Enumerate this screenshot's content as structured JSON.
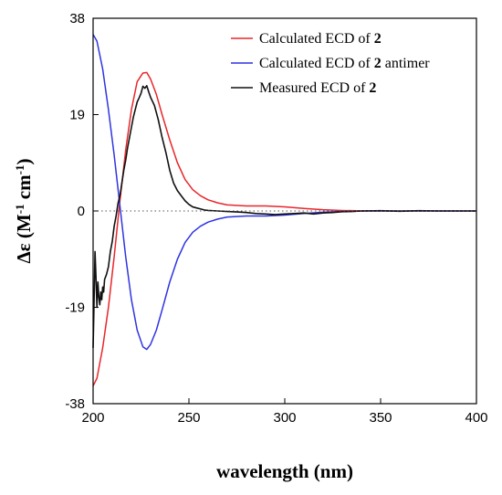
{
  "chart_data": {
    "type": "line",
    "xlabel": "wavelength (nm)",
    "ylabel": {
      "prefix": "Δε (M",
      "sup1": "-1",
      "mid": " cm",
      "sup2": "-1",
      "suffix": ")"
    },
    "xlim": [
      200,
      400
    ],
    "ylim": [
      -38,
      38
    ],
    "x_ticks": [
      200,
      250,
      300,
      350,
      400
    ],
    "x_tick_labels": [
      "200",
      "250",
      "300",
      "350",
      "400"
    ],
    "y_ticks": [
      38,
      19,
      0,
      -19,
      -38
    ],
    "y_tick_labels": [
      "38",
      "19",
      "0",
      "-19",
      "-38"
    ],
    "zero_line": "dotted",
    "grid": false,
    "legend_position": "top-right",
    "series": [
      {
        "name": "Calculated ECD of 2",
        "legend": {
          "prefix": "Calculated ECD of ",
          "bold": "2",
          "suffix": ""
        },
        "color": "#e8262a",
        "points": [
          [
            200,
            -34.5
          ],
          [
            202,
            -33
          ],
          [
            205,
            -27
          ],
          [
            208,
            -19
          ],
          [
            211,
            -9
          ],
          [
            214,
            2
          ],
          [
            217,
            12
          ],
          [
            220,
            20
          ],
          [
            223,
            25.5
          ],
          [
            226,
            27.2
          ],
          [
            228,
            27.3
          ],
          [
            230,
            26
          ],
          [
            233,
            23
          ],
          [
            236,
            19
          ],
          [
            240,
            14
          ],
          [
            244,
            9.5
          ],
          [
            248,
            6.2
          ],
          [
            252,
            4.2
          ],
          [
            256,
            3
          ],
          [
            260,
            2.2
          ],
          [
            265,
            1.6
          ],
          [
            270,
            1.2
          ],
          [
            280,
            1
          ],
          [
            290,
            1
          ],
          [
            300,
            0.8
          ],
          [
            310,
            0.5
          ],
          [
            320,
            0.25
          ],
          [
            330,
            0.1
          ],
          [
            340,
            0.03
          ],
          [
            350,
            0
          ],
          [
            400,
            0
          ]
        ]
      },
      {
        "name": "Calculated ECD of 2 antimer",
        "legend": {
          "prefix": "Calculated ECD of ",
          "bold": "2",
          "suffix": " antimer"
        },
        "color": "#2e34e0",
        "points": [
          [
            200,
            34.8
          ],
          [
            202,
            33.5
          ],
          [
            205,
            28
          ],
          [
            208,
            20
          ],
          [
            211,
            11
          ],
          [
            214,
            1
          ],
          [
            217,
            -9
          ],
          [
            220,
            -17.5
          ],
          [
            223,
            -23.5
          ],
          [
            226,
            -26.8
          ],
          [
            228,
            -27.3
          ],
          [
            230,
            -26.3
          ],
          [
            233,
            -23.5
          ],
          [
            236,
            -19.5
          ],
          [
            240,
            -14
          ],
          [
            244,
            -9.5
          ],
          [
            248,
            -6.2
          ],
          [
            252,
            -4.2
          ],
          [
            256,
            -3
          ],
          [
            260,
            -2.2
          ],
          [
            265,
            -1.6
          ],
          [
            270,
            -1.2
          ],
          [
            280,
            -1
          ],
          [
            290,
            -1
          ],
          [
            300,
            -0.8
          ],
          [
            310,
            -0.5
          ],
          [
            320,
            -0.25
          ],
          [
            330,
            -0.1
          ],
          [
            340,
            -0.03
          ],
          [
            350,
            0
          ],
          [
            400,
            0
          ]
        ]
      },
      {
        "name": "Measured ECD of 2",
        "legend": {
          "prefix": "Measured ECD of ",
          "bold": "2",
          "suffix": ""
        },
        "color": "#111111",
        "points": [
          [
            200,
            -27
          ],
          [
            200.5,
            -18
          ],
          [
            201,
            -8
          ],
          [
            201.5,
            -13
          ],
          [
            202,
            -19
          ],
          [
            202.5,
            -14
          ],
          [
            203,
            -17
          ],
          [
            203.5,
            -18.5
          ],
          [
            204,
            -16
          ],
          [
            204.5,
            -17.5
          ],
          [
            205,
            -15
          ],
          [
            205.5,
            -16
          ],
          [
            206,
            -13.5
          ],
          [
            207,
            -12.5
          ],
          [
            208,
            -11
          ],
          [
            209,
            -8
          ],
          [
            210,
            -6
          ],
          [
            211,
            -3
          ],
          [
            212,
            -1
          ],
          [
            213,
            1.5
          ],
          [
            214,
            3
          ],
          [
            215,
            5.5
          ],
          [
            216,
            8
          ],
          [
            217,
            10
          ],
          [
            218,
            12.5
          ],
          [
            219,
            14.5
          ],
          [
            220,
            16.5
          ],
          [
            221,
            18.5
          ],
          [
            222,
            20
          ],
          [
            223,
            21.5
          ],
          [
            224,
            22.3
          ],
          [
            225,
            23.2
          ],
          [
            226,
            24.6
          ],
          [
            227,
            24.2
          ],
          [
            228,
            24.7
          ],
          [
            229,
            23.5
          ],
          [
            230,
            22.4
          ],
          [
            232,
            20.8
          ],
          [
            234,
            18
          ],
          [
            236,
            14.5
          ],
          [
            238,
            11.5
          ],
          [
            240,
            8
          ],
          [
            242,
            5.5
          ],
          [
            244,
            4
          ],
          [
            246,
            3
          ],
          [
            248,
            2
          ],
          [
            250,
            1.3
          ],
          [
            252,
            0.8
          ],
          [
            254,
            0.6
          ],
          [
            256,
            0.4
          ],
          [
            258,
            0.2
          ],
          [
            260,
            0.1
          ],
          [
            265,
            0
          ],
          [
            270,
            -0.1
          ],
          [
            275,
            -0.2
          ],
          [
            280,
            -0.3
          ],
          [
            285,
            -0.5
          ],
          [
            290,
            -0.6
          ],
          [
            295,
            -0.7
          ],
          [
            300,
            -0.6
          ],
          [
            305,
            -0.5
          ],
          [
            310,
            -0.4
          ],
          [
            315,
            -0.6
          ],
          [
            320,
            -0.4
          ],
          [
            325,
            -0.3
          ],
          [
            330,
            -0.15
          ],
          [
            335,
            -0.1
          ],
          [
            340,
            0
          ],
          [
            350,
            0.05
          ],
          [
            360,
            -0.05
          ],
          [
            370,
            0.05
          ],
          [
            380,
            0
          ],
          [
            390,
            0
          ],
          [
            400,
            0
          ]
        ]
      }
    ]
  }
}
